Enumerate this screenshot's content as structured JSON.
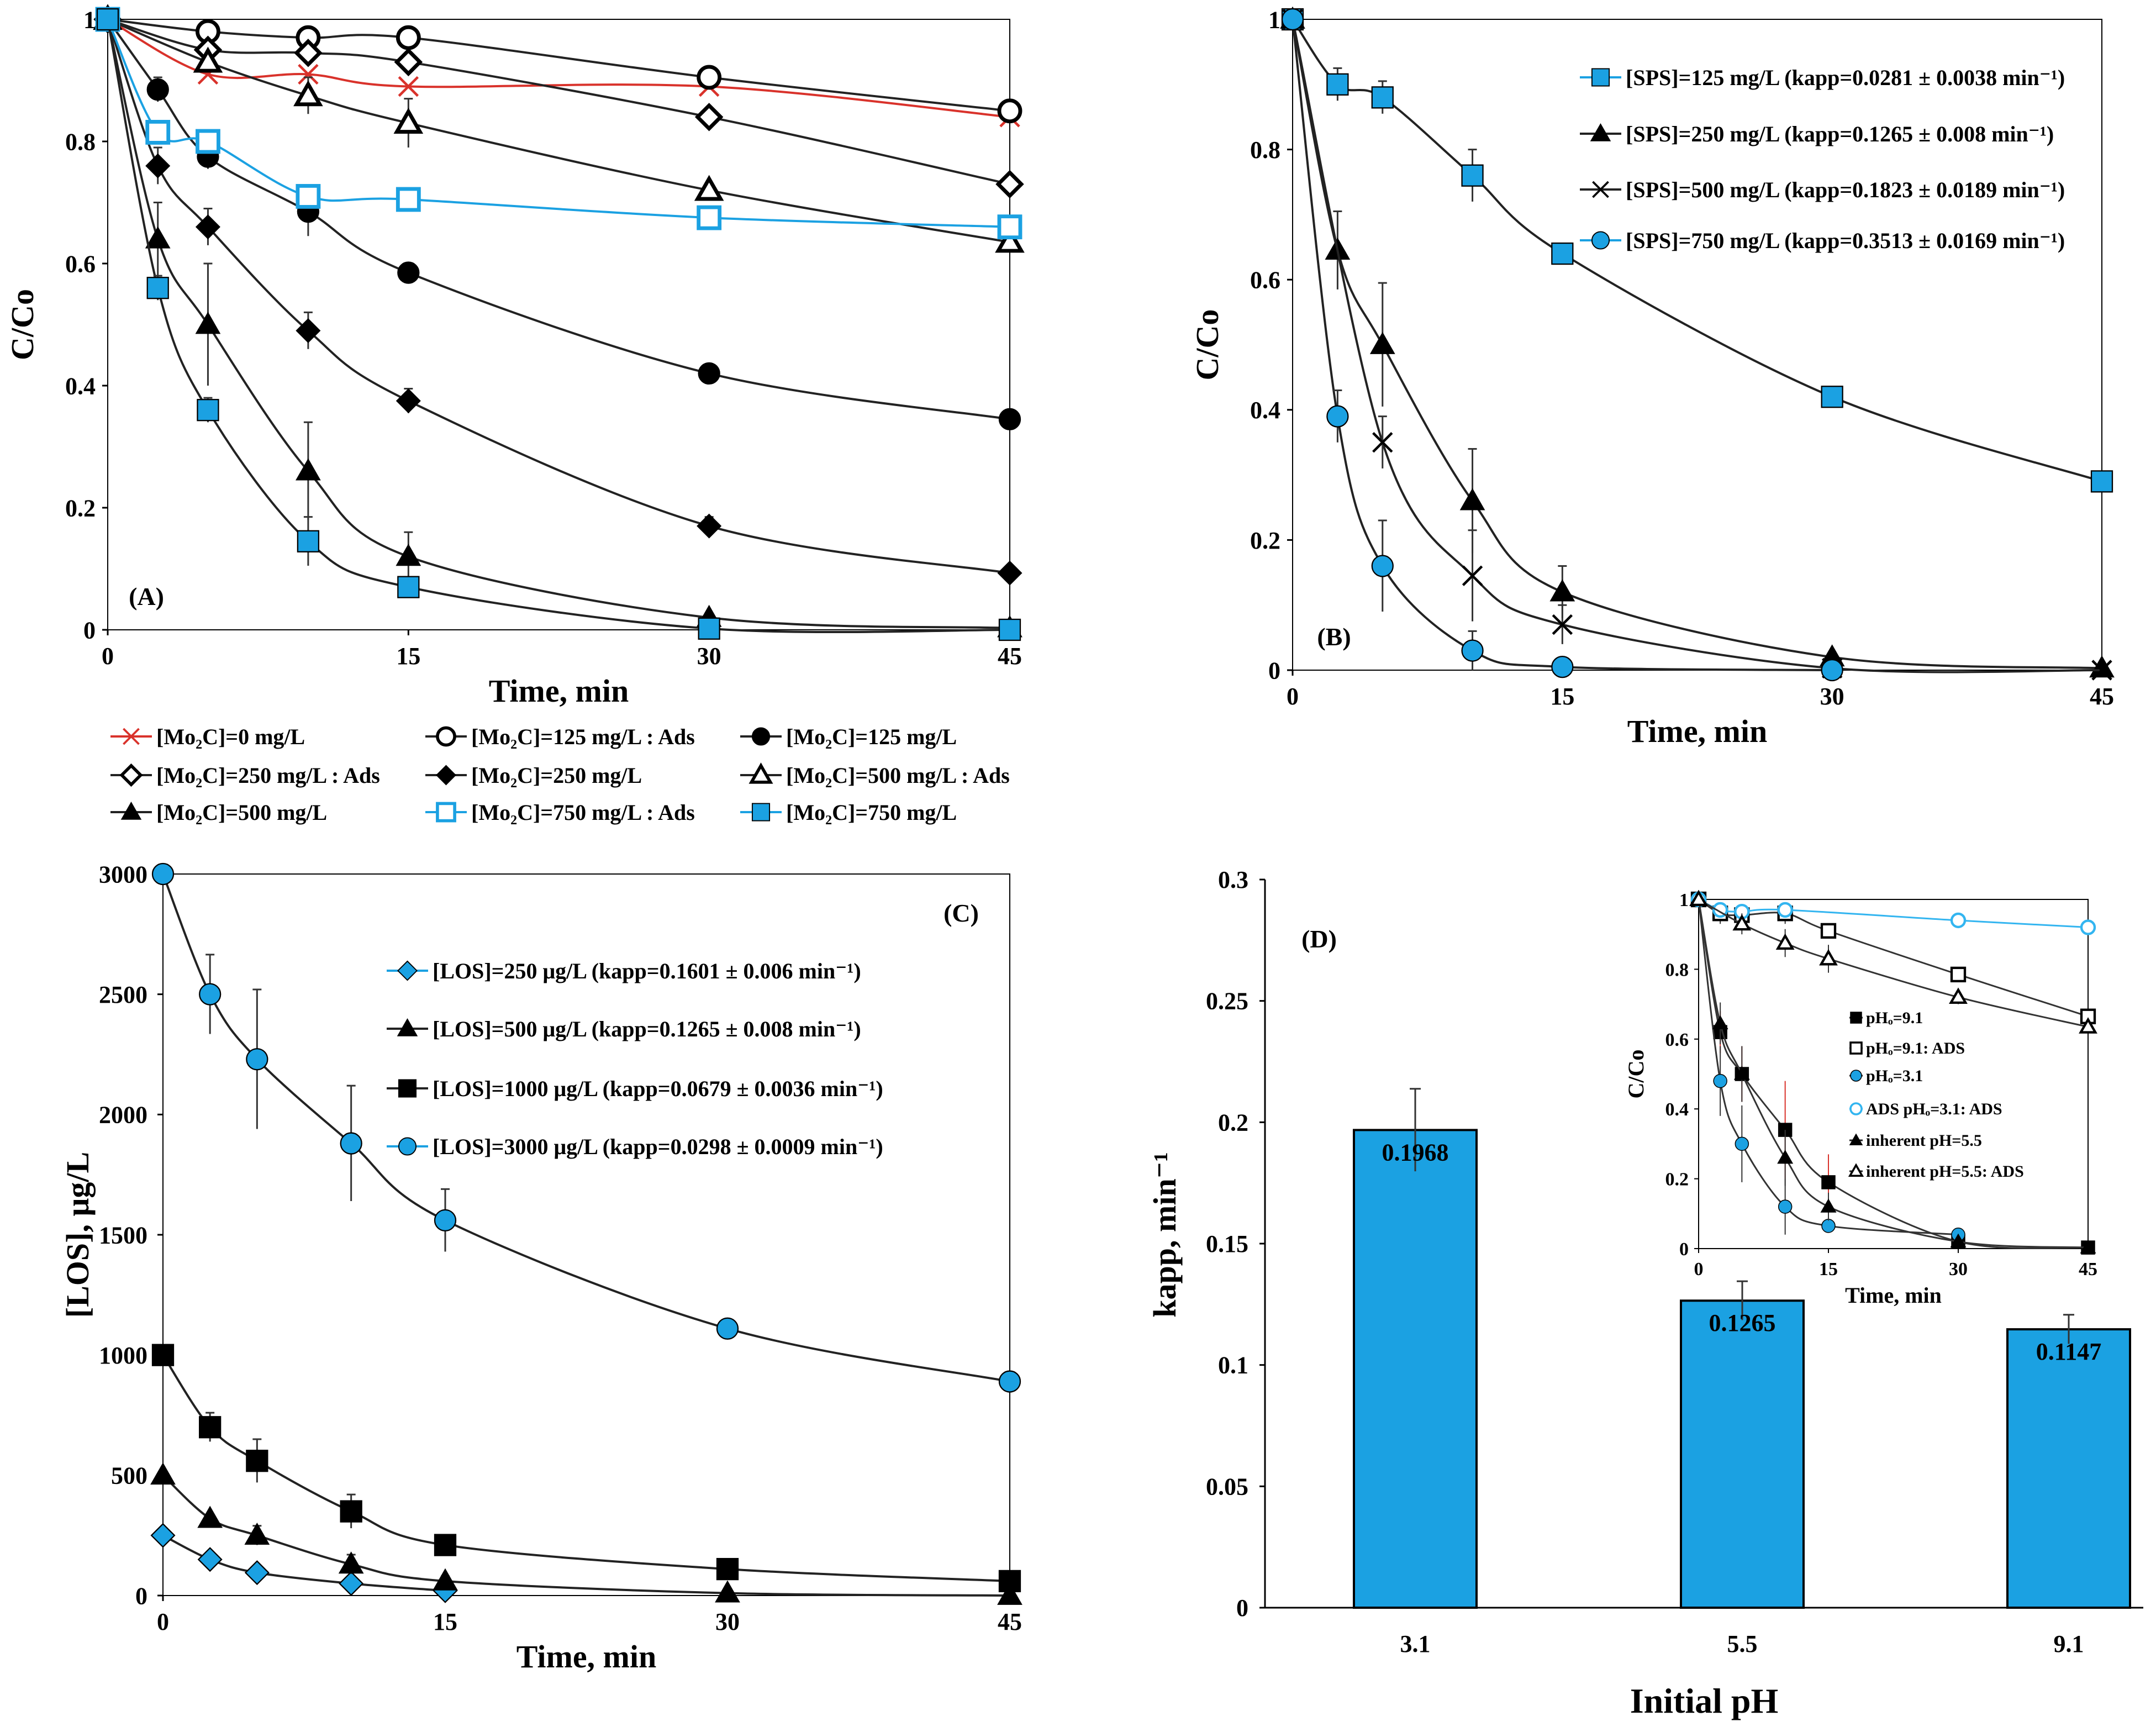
{
  "colors": {
    "blue": "#1ba1e2",
    "red": "#d9322b",
    "black": "#000000",
    "lightblue": "#33b5f0"
  },
  "chart_data": [
    {
      "id": "A",
      "type": "line",
      "label": "(A)",
      "xlabel": "Time, min",
      "ylabel": "C/Co",
      "xlim": [
        0,
        45
      ],
      "ylim": [
        0,
        1
      ],
      "xticks": [
        "0",
        "15",
        "30",
        "45"
      ],
      "yticks": [
        "0",
        "0.2",
        "0.4",
        "0.6",
        "0.8",
        "1"
      ],
      "legend_position": "below",
      "series": [
        {
          "name": "[Mo₂C]=0 mg/L",
          "marker": "x",
          "color": "#d9322b",
          "x": [
            0,
            5,
            10,
            15,
            30,
            45
          ],
          "y": [
            1,
            0.91,
            0.91,
            0.89,
            0.89,
            0.84
          ],
          "err": [
            0,
            0,
            0,
            0,
            0,
            0
          ]
        },
        {
          "name": "[Mo₂C]=125 mg/L : Ads",
          "marker": "circle-open",
          "color": "#000000",
          "x": [
            0,
            5,
            10,
            15,
            30,
            45
          ],
          "y": [
            1,
            0.98,
            0.97,
            0.97,
            0.905,
            0.85
          ],
          "err": [
            0,
            0,
            0,
            0,
            0,
            0
          ]
        },
        {
          "name": "[Mo₂C]=125 mg/L",
          "marker": "circle",
          "color": "#000000",
          "x": [
            0,
            2.5,
            5,
            10,
            15,
            30,
            45
          ],
          "y": [
            1,
            0.885,
            0.775,
            0.685,
            0.585,
            0.42,
            0.345
          ],
          "err": [
            0,
            0.02,
            0.02,
            0.04,
            0.01,
            0.01,
            0
          ]
        },
        {
          "name": "[Mo₂C]=250 mg/L : Ads",
          "marker": "diamond-open",
          "color": "#000000",
          "x": [
            0,
            5,
            10,
            15,
            30,
            45
          ],
          "y": [
            1,
            0.95,
            0.945,
            0.93,
            0.84,
            0.73
          ],
          "err": [
            0,
            0,
            0,
            0,
            0,
            0
          ]
        },
        {
          "name": "[Mo₂C]=250 mg/L",
          "marker": "diamond",
          "color": "#000000",
          "x": [
            0,
            2.5,
            5,
            10,
            15,
            30,
            45
          ],
          "y": [
            1,
            0.76,
            0.66,
            0.49,
            0.375,
            0.17,
            0.093
          ],
          "err": [
            0,
            0.03,
            0.03,
            0.03,
            0.02,
            0.015,
            0
          ]
        },
        {
          "name": "[Mo₂C]=500 mg/L : Ads",
          "marker": "triangle-open",
          "color": "#000000",
          "x": [
            0,
            5,
            10,
            15,
            30,
            45
          ],
          "y": [
            1,
            0.93,
            0.875,
            0.83,
            0.72,
            0.635
          ],
          "err": [
            0,
            0,
            0.03,
            0.04,
            0,
            0
          ]
        },
        {
          "name": "[Mo₂C]=500 mg/L",
          "marker": "triangle",
          "color": "#000000",
          "x": [
            0,
            2.5,
            5,
            10,
            15,
            30,
            45
          ],
          "y": [
            1,
            0.64,
            0.5,
            0.26,
            0.12,
            0.02,
            0.003
          ],
          "err": [
            0,
            0.06,
            0.1,
            0.08,
            0.04,
            0,
            0
          ]
        },
        {
          "name": "[Mo₂C]=750 mg/L : Ads",
          "marker": "square-open",
          "color": "#1ba1e2",
          "x": [
            0,
            2.5,
            5,
            10,
            15,
            30,
            45
          ],
          "y": [
            1,
            0.815,
            0.8,
            0.71,
            0.705,
            0.675,
            0.66
          ],
          "err": [
            0,
            0,
            0,
            0,
            0,
            0,
            0
          ]
        },
        {
          "name": "[Mo₂C]=750 mg/L",
          "marker": "square",
          "color": "#1ba1e2",
          "x": [
            0,
            2.5,
            5,
            10,
            15,
            30,
            45
          ],
          "y": [
            1,
            0.56,
            0.36,
            0.145,
            0.07,
            0.002,
            0
          ],
          "err": [
            0,
            0.02,
            0.02,
            0.04,
            0.01,
            0,
            0
          ]
        }
      ]
    },
    {
      "id": "B",
      "type": "line",
      "label": "(B)",
      "xlabel": "Time, min",
      "ylabel": "C/Co",
      "xlim": [
        0,
        45
      ],
      "ylim": [
        0,
        1
      ],
      "xticks": [
        "0",
        "15",
        "30",
        "45"
      ],
      "yticks": [
        "0",
        "0.2",
        "0.4",
        "0.6",
        "0.8",
        "1"
      ],
      "legend_position": "top-right",
      "series": [
        {
          "name": "[SPS]=125 mg/L  (kapp=0.0281 ± 0.0038 min⁻¹)",
          "marker": "square",
          "color": "#1ba1e2",
          "x": [
            0,
            2.5,
            5,
            10,
            15,
            30,
            45
          ],
          "y": [
            1,
            0.9,
            0.88,
            0.76,
            0.64,
            0.42,
            0.29
          ],
          "err": [
            0,
            0.025,
            0.025,
            0.04,
            0.01,
            0.01,
            0
          ]
        },
        {
          "name": "[SPS]=250 mg/L  (kapp=0.1265 ± 0.008 min⁻¹)",
          "marker": "triangle",
          "color": "#000000",
          "x": [
            0,
            2.5,
            5,
            10,
            15,
            30,
            45
          ],
          "y": [
            1,
            0.645,
            0.5,
            0.26,
            0.12,
            0.02,
            0.003
          ],
          "err": [
            0,
            0.06,
            0.095,
            0.08,
            0.04,
            0,
            0
          ]
        },
        {
          "name": "[SPS]=500 mg/L  (kapp=0.1823 ± 0.0189 min⁻¹)",
          "marker": "x",
          "color": "#000000",
          "x": [
            0,
            5,
            10,
            15,
            30,
            45
          ],
          "y": [
            1,
            0.35,
            0.145,
            0.07,
            0.003,
            0
          ],
          "err": [
            0,
            0.04,
            0.07,
            0.03,
            0,
            0
          ]
        },
        {
          "name": "[SPS]=750 mg/L  (kapp=0.3513 ± 0.0169 min⁻¹)",
          "marker": "circle",
          "color": "#1ba1e2",
          "x": [
            0,
            2.5,
            5,
            10,
            15,
            30
          ],
          "y": [
            1,
            0.39,
            0.16,
            0.03,
            0.005,
            0
          ],
          "err": [
            0,
            0.04,
            0.07,
            0.03,
            0.005,
            0
          ]
        }
      ]
    },
    {
      "id": "C",
      "type": "line",
      "label": "(C)",
      "xlabel": "Time, min",
      "ylabel": "[LOS], μg/L",
      "xlim": [
        0,
        45
      ],
      "ylim": [
        0,
        3000
      ],
      "xticks": [
        "0",
        "15",
        "30",
        "45"
      ],
      "yticks": [
        "0",
        "500",
        "1000",
        "1500",
        "2000",
        "2500",
        "3000"
      ],
      "legend_position": "top-right",
      "series": [
        {
          "name": "[LOS]=250 μg/L (kapp=0.1601 ± 0.006 min⁻¹)",
          "marker": "diamond",
          "color": "#1ba1e2",
          "x": [
            0,
            2.5,
            5,
            10,
            15
          ],
          "y": [
            250,
            150,
            95,
            50,
            20
          ],
          "err": [
            0,
            0,
            0,
            0,
            0
          ]
        },
        {
          "name": "[LOS]=500 μg/L (kapp=0.1265 ± 0.008 min⁻¹)",
          "marker": "triangle",
          "color": "#000000",
          "x": [
            0,
            2.5,
            5,
            10,
            15,
            30,
            45
          ],
          "y": [
            500,
            320,
            250,
            130,
            60,
            10,
            0
          ],
          "err": [
            0,
            0,
            40,
            40,
            20,
            0,
            0
          ]
        },
        {
          "name": "[LOS]=1000 μg/L (kapp=0.0679 ± 0.0036 min⁻¹)",
          "marker": "square",
          "color": "#000000",
          "x": [
            0,
            2.5,
            5,
            10,
            15,
            30,
            45
          ],
          "y": [
            1000,
            700,
            560,
            350,
            210,
            110,
            60
          ],
          "err": [
            0,
            60,
            90,
            70,
            0,
            0,
            0
          ]
        },
        {
          "name": "[LOS]=3000 μg/L (kapp=0.0298 ± 0.0009 min⁻¹)",
          "marker": "circle",
          "color": "#1ba1e2",
          "x": [
            0,
            2.5,
            5,
            10,
            15,
            30,
            45
          ],
          "y": [
            3000,
            2500,
            2230,
            1880,
            1560,
            1110,
            890
          ],
          "err": [
            0,
            165,
            290,
            240,
            130,
            0,
            0
          ]
        }
      ]
    },
    {
      "id": "D",
      "type": "bar",
      "label": "(D)",
      "xlabel": "Initial pH",
      "ylabel": "kapp, min⁻¹",
      "ylim": [
        0,
        0.3
      ],
      "yticks": [
        "0",
        "0.05",
        "0.1",
        "0.15",
        "0.2",
        "0.25",
        "0.3"
      ],
      "categories": [
        "3.1",
        "5.5",
        "9.1"
      ],
      "values": [
        0.1968,
        0.1265,
        0.1147
      ],
      "value_labels": [
        "0.1968",
        "0.1265",
        "0.1147"
      ],
      "err": [
        0.017,
        0.008,
        0.006
      ],
      "bar_color": "#1ba1e2",
      "inset": {
        "type": "line",
        "xlabel": "Time, min",
        "ylabel": "C/Co",
        "xlim": [
          0,
          45
        ],
        "ylim": [
          0,
          1
        ],
        "xticks": [
          "0",
          "15",
          "30",
          "45"
        ],
        "yticks": [
          "0",
          "0.2",
          "0.4",
          "0.6",
          "0.8",
          "1"
        ],
        "series": [
          {
            "name": "pHₒ=9.1",
            "marker": "square",
            "color": "#000000",
            "x": [
              0,
              2.5,
              5,
              10,
              15,
              30,
              45
            ],
            "y": [
              1,
              0.62,
              0.5,
              0.34,
              0.19,
              0.02,
              0.003
            ],
            "err": [
              0,
              0.06,
              0.08,
              0.14,
              0.08,
              0,
              0
            ]
          },
          {
            "name": "pHₒ=9.1: ADS",
            "marker": "square-open",
            "color": "#000000",
            "x": [
              0,
              2.5,
              5,
              10,
              15,
              30,
              45
            ],
            "y": [
              1,
              0.96,
              0.955,
              0.96,
              0.91,
              0.785,
              0.665
            ],
            "err": [
              0,
              0.03,
              0.03,
              0.03,
              0.02,
              0,
              0
            ]
          },
          {
            "name": "pHₒ=3.1",
            "marker": "circle",
            "color": "#1ba1e2",
            "x": [
              0,
              2.5,
              5,
              10,
              15,
              30
            ],
            "y": [
              1,
              0.48,
              0.3,
              0.12,
              0.065,
              0.04
            ],
            "err": [
              0,
              0.1,
              0.11,
              0.08,
              0.02,
              0
            ]
          },
          {
            "name": "ADS  pHₒ=3.1: ADS",
            "marker": "circle-open",
            "color": "#33b5f0",
            "x": [
              0,
              2.5,
              5,
              10,
              30,
              45
            ],
            "y": [
              1,
              0.97,
              0.965,
              0.97,
              0.94,
              0.92
            ],
            "err": [
              0,
              0,
              0,
              0,
              0,
              0
            ]
          },
          {
            "name": "inherent pH=5.5",
            "marker": "triangle",
            "color": "#000000",
            "x": [
              0,
              2.5,
              5,
              10,
              15,
              30,
              45
            ],
            "y": [
              1,
              0.645,
              0.5,
              0.26,
              0.12,
              0.02,
              0.003
            ],
            "err": [
              0,
              0.06,
              0.08,
              0.08,
              0.04,
              0,
              0
            ]
          },
          {
            "name": "inherent pH=5.5: ADS",
            "marker": "triangle-open",
            "color": "#000000",
            "x": [
              0,
              5,
              10,
              15,
              30,
              45
            ],
            "y": [
              1,
              0.93,
              0.875,
              0.83,
              0.72,
              0.635
            ],
            "err": [
              0,
              0.03,
              0.04,
              0.04,
              0.02,
              0
            ]
          }
        ]
      }
    }
  ]
}
